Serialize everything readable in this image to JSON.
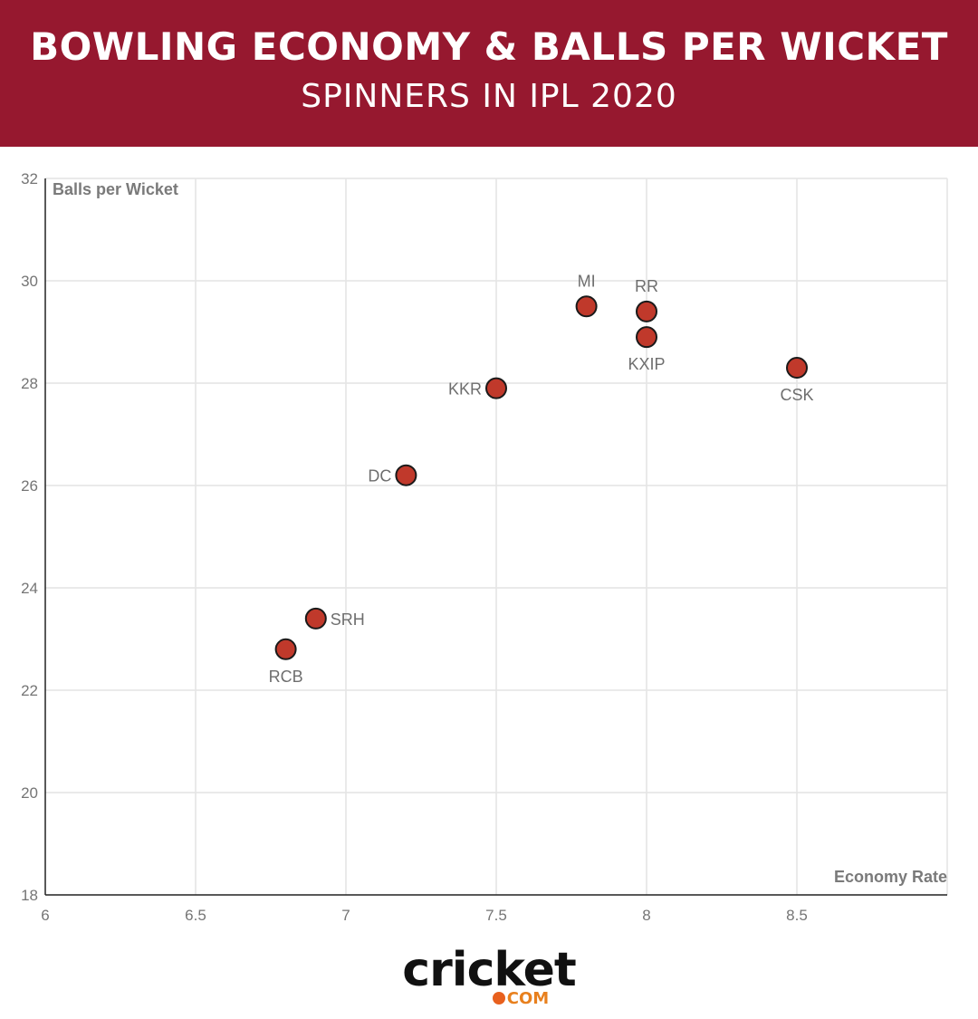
{
  "header": {
    "title": "BOWLING ECONOMY & BALLS PER WICKET",
    "subtitle": "SPINNERS IN IPL 2020",
    "background_color": "#96182f"
  },
  "chart_data": {
    "type": "scatter",
    "title": "BOWLING ECONOMY & BALLS PER WICKET",
    "subtitle": "SPINNERS IN IPL 2020",
    "xlabel": "Economy Rate",
    "ylabel": "Balls per Wicket",
    "xlim": [
      6,
      9
    ],
    "ylim": [
      18,
      32
    ],
    "xticks": [
      "6",
      "6.5",
      "7",
      "7.5",
      "8",
      "8.5"
    ],
    "yticks": [
      "18",
      "20",
      "22",
      "24",
      "26",
      "28",
      "30",
      "32"
    ],
    "grid": true,
    "point_color": "#c0392b",
    "points": [
      {
        "label": "MI",
        "x": 7.8,
        "y": 29.5,
        "label_pos": "top"
      },
      {
        "label": "RR",
        "x": 8.0,
        "y": 29.4,
        "label_pos": "top"
      },
      {
        "label": "KXIP",
        "x": 8.0,
        "y": 28.9,
        "label_pos": "bottom"
      },
      {
        "label": "CSK",
        "x": 8.5,
        "y": 28.3,
        "label_pos": "bottom"
      },
      {
        "label": "KKR",
        "x": 7.5,
        "y": 27.9,
        "label_pos": "left"
      },
      {
        "label": "DC",
        "x": 7.2,
        "y": 26.2,
        "label_pos": "left"
      },
      {
        "label": "SRH",
        "x": 6.9,
        "y": 23.4,
        "label_pos": "right"
      },
      {
        "label": "RCB",
        "x": 6.8,
        "y": 22.8,
        "label_pos": "bottom"
      }
    ]
  },
  "logo": {
    "word": "cricket",
    "suffix": "COM",
    "accent_color": "#e8801e"
  }
}
